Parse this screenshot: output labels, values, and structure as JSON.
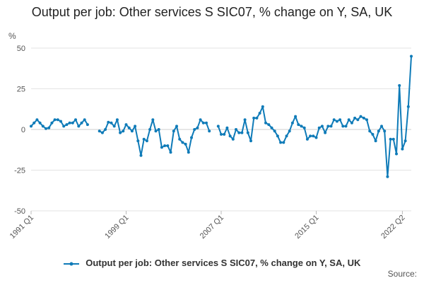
{
  "chart_data": {
    "type": "line",
    "title": "Output per job: Other services S SIC07, % change on Y, SA, UK",
    "ylabel": "%",
    "source_label": "Source:",
    "ylim": [
      -50,
      50
    ],
    "y_ticks": [
      50,
      25,
      0,
      -25,
      -50
    ],
    "y_tick_labels": [
      "50",
      "25",
      "0",
      "-25",
      "-50"
    ],
    "x_tick_labels": [
      "1991 Q1",
      "1999 Q1",
      "2007 Q1",
      "2015 Q1",
      "2022 Q2"
    ],
    "x_tick_index": [
      0,
      32,
      64,
      96,
      125
    ],
    "grid": true,
    "legend_position": "bottom",
    "color": "#1f77b4",
    "series": [
      {
        "name": "Output per job: Other services S SIC07, % change on Y, SA, UK",
        "color": "#0f7bb8",
        "start": "1991 Q1",
        "x_labels": [
          "1991 Q1",
          "1991 Q2",
          "1991 Q3",
          "1991 Q4",
          "1992 Q1",
          "1992 Q2",
          "1992 Q3",
          "1992 Q4",
          "1993 Q1",
          "1993 Q2",
          "1993 Q3",
          "1993 Q4",
          "1994 Q1",
          "1994 Q2",
          "1994 Q3",
          "1994 Q4",
          "1995 Q1",
          "1995 Q2",
          "1995 Q3",
          "1995 Q4",
          "1996 Q1",
          "1996 Q2",
          "1996 Q3",
          "1996 Q4",
          "1997 Q1",
          "1997 Q2",
          "1997 Q3",
          "1997 Q4",
          "1998 Q1",
          "1998 Q2",
          "1998 Q3",
          "1998 Q4",
          "1999 Q1",
          "1999 Q2",
          "1999 Q3",
          "1999 Q4",
          "2000 Q1",
          "2000 Q2",
          "2000 Q3",
          "2000 Q4",
          "2001 Q1",
          "2001 Q2",
          "2001 Q3",
          "2001 Q4",
          "2002 Q1",
          "2002 Q2",
          "2002 Q3",
          "2002 Q4",
          "2003 Q1",
          "2003 Q2",
          "2003 Q3",
          "2003 Q4",
          "2004 Q1",
          "2004 Q2",
          "2004 Q3",
          "2004 Q4",
          "2005 Q1",
          "2005 Q2",
          "2005 Q3",
          "2005 Q4",
          "2006 Q1",
          "2006 Q2",
          "2006 Q3",
          "2006 Q4",
          "2007 Q1",
          "2007 Q2",
          "2007 Q3",
          "2007 Q4",
          "2008 Q1",
          "2008 Q2",
          "2008 Q3",
          "2008 Q4",
          "2009 Q1",
          "2009 Q2",
          "2009 Q3",
          "2009 Q4",
          "2010 Q1",
          "2010 Q2",
          "2010 Q3",
          "2010 Q4",
          "2011 Q1",
          "2011 Q2",
          "2011 Q3",
          "2011 Q4",
          "2012 Q1",
          "2012 Q2",
          "2012 Q3",
          "2012 Q4",
          "2013 Q1",
          "2013 Q2",
          "2013 Q3",
          "2013 Q4",
          "2014 Q1",
          "2014 Q2",
          "2014 Q3",
          "2014 Q4",
          "2015 Q1",
          "2015 Q2",
          "2015 Q3",
          "2015 Q4",
          "2016 Q1",
          "2016 Q2",
          "2016 Q3",
          "2016 Q4",
          "2017 Q1",
          "2017 Q2",
          "2017 Q3",
          "2017 Q4",
          "2018 Q1",
          "2018 Q2",
          "2018 Q3",
          "2018 Q4",
          "2019 Q1",
          "2019 Q2",
          "2019 Q3",
          "2019 Q4",
          "2020 Q1",
          "2020 Q2",
          "2020 Q3",
          "2020 Q4",
          "2021 Q1",
          "2021 Q2",
          "2021 Q3",
          "2021 Q4",
          "2022 Q1",
          "2022 Q2"
        ],
        "values": [
          2,
          4,
          6,
          4,
          2,
          0.5,
          1,
          4,
          6,
          6,
          5,
          2,
          3,
          4,
          4,
          6,
          2,
          4,
          6,
          3,
          null,
          null,
          null,
          -1,
          -2,
          0,
          4.5,
          4,
          2,
          6,
          -2,
          -1,
          3,
          1,
          -1,
          2,
          -7,
          -16,
          -6,
          -7,
          0,
          6,
          -1,
          0,
          -11,
          -10,
          -10,
          -14,
          -1,
          2,
          -6,
          -8,
          -9,
          -14,
          -5,
          0,
          1,
          6,
          4,
          4,
          -1,
          null,
          null,
          2,
          -3,
          -3,
          1,
          -4,
          -6,
          0,
          -2,
          -2,
          6,
          -2,
          -7,
          7,
          7,
          10,
          14,
          4,
          3,
          1,
          -1,
          -4,
          -8,
          -8,
          -4,
          -1,
          4,
          8,
          3,
          2,
          1,
          -6,
          -4,
          -4,
          -5,
          1,
          2,
          -2,
          2,
          2,
          6,
          5,
          6,
          2,
          2,
          6,
          4,
          7,
          6,
          8,
          7,
          6,
          -1,
          -3,
          -7,
          -1,
          2,
          -1,
          -29,
          -6,
          -6,
          -15,
          27,
          -12,
          -7,
          14,
          45
        ]
      }
    ]
  }
}
